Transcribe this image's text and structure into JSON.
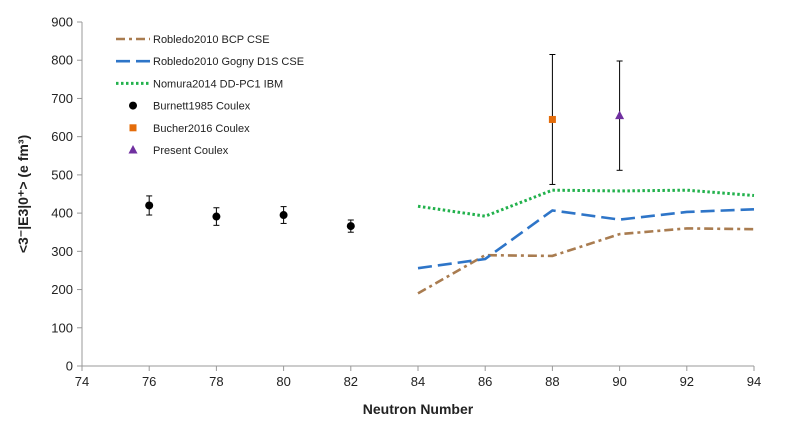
{
  "chart_data": {
    "type": "scatter",
    "xlabel": "Neutron Number",
    "ylabel": "<3⁻|E3|0⁺>  (e fm³)",
    "xlim": [
      74,
      94
    ],
    "ylim": [
      0,
      900
    ],
    "xticks": [
      74,
      76,
      78,
      80,
      82,
      84,
      86,
      88,
      90,
      92,
      94
    ],
    "yticks": [
      0,
      100,
      200,
      300,
      400,
      500,
      600,
      700,
      800,
      900
    ],
    "grid": false,
    "legend_position": "top-left",
    "series": [
      {
        "name": "Robledo2010 BCP CSE",
        "kind": "line",
        "style": "dashdot",
        "color": "#a97c50",
        "x": [
          84,
          86,
          88,
          90,
          92,
          94
        ],
        "y": [
          190,
          290,
          288,
          345,
          360,
          358
        ]
      },
      {
        "name": "Robledo2010 Gogny D1S CSE",
        "kind": "line",
        "style": "dash",
        "color": "#2e75c8",
        "x": [
          84,
          86,
          88,
          90,
          92,
          94
        ],
        "y": [
          256,
          280,
          407,
          383,
          403,
          410
        ]
      },
      {
        "name": "Nomura2014 DD-PC1 IBM",
        "kind": "line",
        "style": "dot",
        "color": "#22b14c",
        "x": [
          84,
          86,
          88,
          90,
          92,
          94
        ],
        "y": [
          418,
          392,
          460,
          458,
          460,
          446
        ]
      },
      {
        "name": "Burnett1985 Coulex",
        "kind": "marker",
        "marker": "circle",
        "color": "#000000",
        "x": [
          76,
          78,
          80,
          82
        ],
        "y": [
          420,
          391,
          395,
          366
        ],
        "err": [
          25,
          23,
          22,
          16
        ]
      },
      {
        "name": "Bucher2016 Coulex",
        "kind": "marker",
        "marker": "square",
        "color": "#e46c0a",
        "x": [
          88
        ],
        "y": [
          645
        ],
        "err": [
          170
        ]
      },
      {
        "name": "Present Coulex",
        "kind": "marker",
        "marker": "triangle",
        "color": "#7030a0",
        "x": [
          90
        ],
        "y": [
          655
        ],
        "err": [
          143
        ]
      }
    ]
  }
}
